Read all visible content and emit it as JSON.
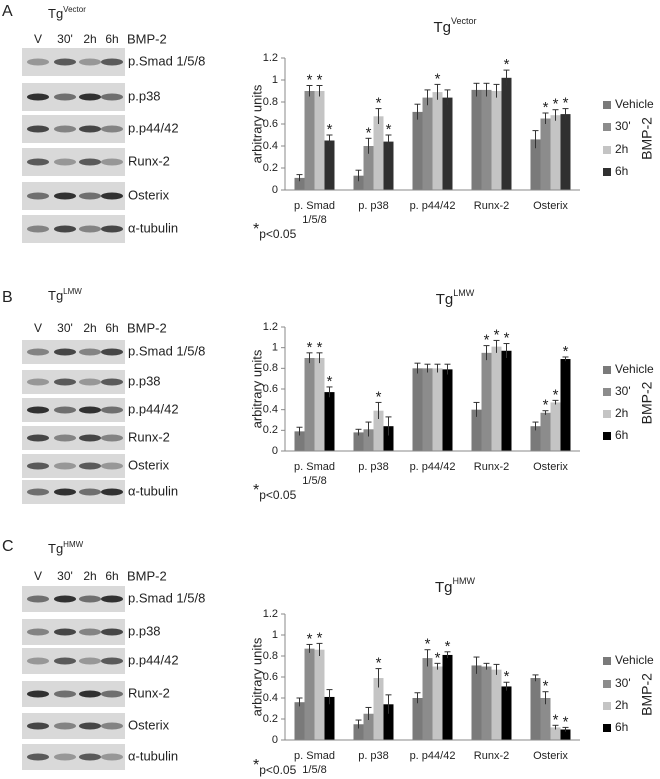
{
  "panels": [
    {
      "letter": "A",
      "blot": {
        "title": "Tg",
        "title_sup": "Vector",
        "lanes": [
          "V",
          "30'",
          "2h",
          "6h"
        ],
        "treatment": "BMP-2",
        "proteins": [
          "p.Smad 1/5/8",
          "p.p38",
          "p.p44/42",
          "Runx-2",
          "Osterix",
          "α-tubulin"
        ]
      }
    },
    {
      "letter": "B",
      "blot": {
        "title": "Tg",
        "title_sup": "LMW",
        "lanes": [
          "V",
          "30'",
          "2h",
          "6h"
        ],
        "treatment": "BMP-2",
        "proteins": [
          "p.Smad 1/5/8",
          "p.p38",
          "p.p44/42",
          "Runx-2",
          "Osterix",
          "α-tubulin"
        ]
      }
    },
    {
      "letter": "C",
      "blot": {
        "title": "Tg",
        "title_sup": "HMW",
        "lanes": [
          "V",
          "30'",
          "2h",
          "6h"
        ],
        "treatment": "BMP-2",
        "proteins": [
          "p.Smad 1/5/8",
          "p.p38",
          "p.p44/42",
          "Runx-2",
          "Osterix",
          "α-tubulin"
        ]
      }
    }
  ],
  "chart_data": [
    {
      "type": "bar",
      "title": "Tg",
      "title_sup": "Vector",
      "y_label": "arbitrary units",
      "categories": [
        "p. Smad 1/5/8",
        "p. p38",
        "p. p44/42",
        "Runx-2",
        "Osterix"
      ],
      "series": [
        {
          "name": "Vehicle",
          "color": "#7a7a7a",
          "values": [
            0.11,
            0.13,
            0.71,
            0.91,
            0.46
          ],
          "errors": [
            0.03,
            0.05,
            0.07,
            0.06,
            0.08
          ],
          "significance": [
            null,
            null,
            null,
            null,
            null
          ]
        },
        {
          "name": "30'",
          "color": "#8c8c8c",
          "values": [
            0.9,
            0.4,
            0.84,
            0.91,
            0.65
          ],
          "errors": [
            0.05,
            0.07,
            0.07,
            0.06,
            0.05
          ],
          "significance": [
            "*",
            "*",
            null,
            null,
            "*"
          ]
        },
        {
          "name": "2h",
          "color": "#c4c4c4",
          "values": [
            0.9,
            0.67,
            0.89,
            0.9,
            0.68
          ],
          "errors": [
            0.05,
            0.07,
            0.07,
            0.06,
            0.05
          ],
          "significance": [
            "*",
            "*",
            "*",
            null,
            "*"
          ]
        },
        {
          "name": "6h",
          "color": "#303030",
          "values": [
            0.45,
            0.44,
            0.84,
            1.02,
            0.69
          ],
          "errors": [
            0.05,
            0.06,
            0.07,
            0.07,
            0.05
          ],
          "significance": [
            "*",
            "*",
            null,
            "*",
            "*"
          ]
        }
      ],
      "ylim": [
        0,
        1.2
      ],
      "yticks": [
        0,
        0.2,
        0.4,
        0.6,
        0.8,
        1,
        1.2
      ],
      "legend": "right",
      "legend_title": "BMP-2",
      "note_symbol": "*",
      "note": "p<0.05"
    },
    {
      "type": "bar",
      "title": "Tg",
      "title_sup": "LMW",
      "y_label": "arbitrary units",
      "categories": [
        "p. Smad 1/5/8",
        "p. p38",
        "p. p44/42",
        "Runx-2",
        "Osterix"
      ],
      "series": [
        {
          "name": "Vehicle",
          "color": "#7a7a7a",
          "values": [
            0.19,
            0.18,
            0.8,
            0.4,
            0.24
          ],
          "errors": [
            0.04,
            0.03,
            0.05,
            0.07,
            0.04
          ],
          "significance": [
            null,
            null,
            null,
            null,
            null
          ]
        },
        {
          "name": "30'",
          "color": "#8c8c8c",
          "values": [
            0.9,
            0.21,
            0.8,
            0.95,
            0.37
          ],
          "errors": [
            0.05,
            0.07,
            0.04,
            0.07,
            0.02
          ],
          "significance": [
            "*",
            null,
            null,
            "*",
            "*"
          ]
        },
        {
          "name": "2h",
          "color": "#c4c4c4",
          "values": [
            0.9,
            0.39,
            0.8,
            1.01,
            0.47
          ],
          "errors": [
            0.05,
            0.08,
            0.04,
            0.06,
            0.02
          ],
          "significance": [
            "*",
            "*",
            null,
            "*",
            "*"
          ]
        },
        {
          "name": "6h",
          "color": "#000000",
          "values": [
            0.57,
            0.24,
            0.79,
            0.97,
            0.89
          ],
          "errors": [
            0.05,
            0.09,
            0.05,
            0.07,
            0.02
          ],
          "significance": [
            "*",
            null,
            null,
            "*",
            "*"
          ]
        }
      ],
      "ylim": [
        0,
        1.2
      ],
      "yticks": [
        0,
        0.2,
        0.4,
        0.6,
        0.8,
        1,
        1.2
      ],
      "legend": "right",
      "legend_title": "BMP-2",
      "note_symbol": "*",
      "note": "p<0.05"
    },
    {
      "type": "bar",
      "title": "Tg",
      "title_sup": "HMW",
      "y_label": "arbitrary units",
      "categories": [
        "p. Smad 1/5/8",
        "p. p38",
        "p. p44/42",
        "Runx-2",
        "Osterix"
      ],
      "series": [
        {
          "name": "Vehicle",
          "color": "#7a7a7a",
          "values": [
            0.36,
            0.15,
            0.4,
            0.71,
            0.59
          ],
          "errors": [
            0.04,
            0.04,
            0.05,
            0.08,
            0.03
          ],
          "significance": [
            null,
            null,
            null,
            null,
            null
          ]
        },
        {
          "name": "30'",
          "color": "#8c8c8c",
          "values": [
            0.87,
            0.25,
            0.78,
            0.7,
            0.4
          ],
          "errors": [
            0.04,
            0.06,
            0.08,
            0.03,
            0.06
          ],
          "significance": [
            "*",
            null,
            "*",
            null,
            "*"
          ]
        },
        {
          "name": "2h",
          "color": "#c4c4c4",
          "values": [
            0.86,
            0.59,
            0.7,
            0.67,
            0.12
          ],
          "errors": [
            0.06,
            0.09,
            0.03,
            0.05,
            0.02
          ],
          "significance": [
            "*",
            "*",
            "*",
            null,
            "*"
          ]
        },
        {
          "name": "6h",
          "color": "#000000",
          "values": [
            0.41,
            0.34,
            0.81,
            0.51,
            0.1
          ],
          "errors": [
            0.07,
            0.09,
            0.03,
            0.04,
            0.02
          ],
          "significance": [
            null,
            null,
            "*",
            "*",
            "*"
          ]
        }
      ],
      "ylim": [
        0,
        1.2
      ],
      "yticks": [
        0,
        0.2,
        0.4,
        0.6,
        0.8,
        1,
        1.2
      ],
      "legend": "right",
      "legend_title": "BMP-2",
      "note_symbol": "*",
      "note": "p<0.05"
    }
  ]
}
